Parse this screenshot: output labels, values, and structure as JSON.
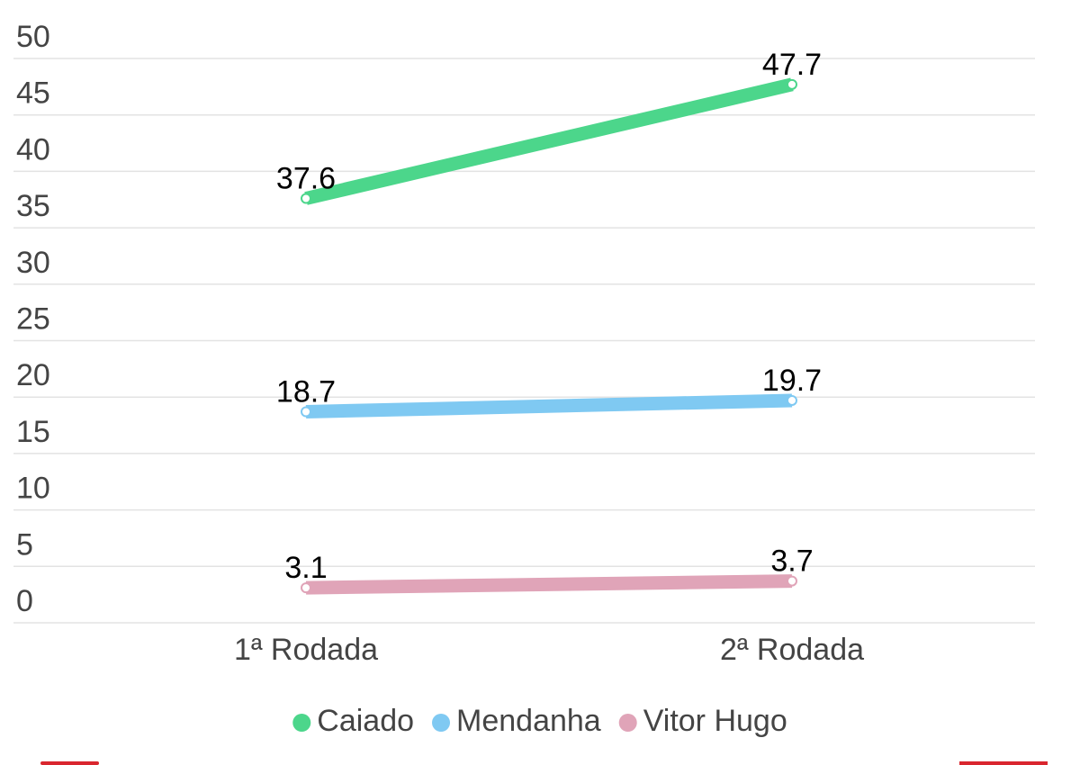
{
  "chart_data": {
    "type": "line",
    "categories": [
      "1ª Rodada",
      "2ª Rodada"
    ],
    "series": [
      {
        "name": "Caiado",
        "color": "#4cd68b",
        "values": [
          37.6,
          47.7
        ]
      },
      {
        "name": "Mendanha",
        "color": "#7fc9f2",
        "values": [
          18.7,
          19.7
        ]
      },
      {
        "name": "Vitor Hugo",
        "color": "#e0a4b8",
        "values": [
          3.1,
          3.7
        ]
      }
    ],
    "ylim": [
      0,
      50
    ],
    "yticks": [
      0,
      5,
      10,
      15,
      20,
      25,
      30,
      35,
      40,
      45,
      50
    ],
    "grid": true
  }
}
